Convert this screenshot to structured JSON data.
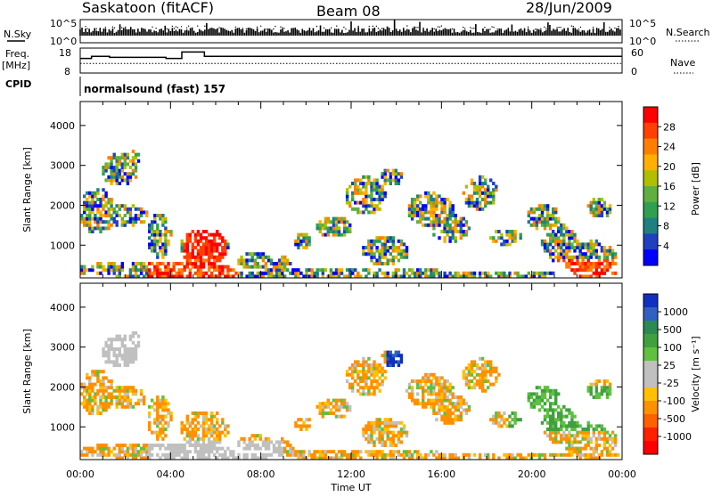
{
  "header": {
    "station": "Saskatoon (fitACF)",
    "beam": "Beam 08",
    "date": "28/Jun/2009"
  },
  "mode_line": "normalsound (fast) 157",
  "left_labels": {
    "nsky": "N.Sky",
    "freq1": "Freq.",
    "freq2": "[MHz]",
    "cpid": "CPID"
  },
  "right_labels": {
    "nsearch": "N.Search",
    "nave": "Nave"
  },
  "chart_data": [
    {
      "type": "line",
      "name": "noise-panel",
      "yticks_left": [
        "10^5",
        "10^0"
      ],
      "yticks_right": [
        "10^5",
        "10^0"
      ],
      "series": [
        {
          "name": "N.Sky",
          "style": "solid"
        },
        {
          "name": "N.Search",
          "style": "dotted"
        }
      ]
    },
    {
      "type": "line",
      "name": "freq-nave-panel",
      "yticks_left": [
        "18",
        "8"
      ],
      "yticks_right": [
        "60",
        "0"
      ],
      "ylim_left": [
        8,
        18
      ],
      "ylim_right": [
        0,
        60
      ],
      "freq": {
        "x": [
          0,
          0.5,
          1.3,
          3.8,
          4.5,
          5.5,
          24
        ],
        "y": [
          14,
          15,
          14.5,
          14,
          17,
          15,
          14
        ]
      },
      "nave": {
        "x": [
          0,
          24
        ],
        "y": [
          22,
          22
        ]
      }
    },
    {
      "type": "heatmap",
      "name": "power-panel",
      "ylabel": "Slant Range [km]",
      "yticks": [
        1000,
        2000,
        3000,
        4000
      ],
      "ylim": [
        180,
        4600
      ],
      "xlim": [
        0,
        24
      ],
      "colorbar": {
        "label": "Power [dB]",
        "ticks": [
          "28",
          "24",
          "20",
          "16",
          "12",
          "8",
          "4"
        ],
        "colors": [
          "#ff0000",
          "#ff4000",
          "#ff8000",
          "#ffb000",
          "#b0c000",
          "#60b040",
          "#30a050",
          "#208080",
          "#2040c0",
          "#0000ff"
        ]
      }
    },
    {
      "type": "heatmap",
      "name": "velocity-panel",
      "ylabel": "Slant Range [km]",
      "yticks": [
        1000,
        2000,
        3000,
        4000
      ],
      "ylim": [
        180,
        4600
      ],
      "xlim": [
        0,
        24
      ],
      "xticks": [
        "00:00",
        "04:00",
        "08:00",
        "12:00",
        "16:00",
        "20:00",
        "00:00"
      ],
      "xlabel": "Time UT",
      "colorbar": {
        "label": "Velocity [m s⁻¹]",
        "ticks": [
          "1000",
          "500",
          "100",
          "25",
          "-25",
          "-100",
          "-500",
          "-1000"
        ],
        "colors": [
          "#1030c0",
          "#3060c0",
          "#2a8a50",
          "#40a040",
          "#60c040",
          "#c0c0c0",
          "#c0c0c0",
          "#ffc000",
          "#ff9000",
          "#ff6000",
          "#ff2000",
          "#ff0000"
        ]
      }
    }
  ]
}
